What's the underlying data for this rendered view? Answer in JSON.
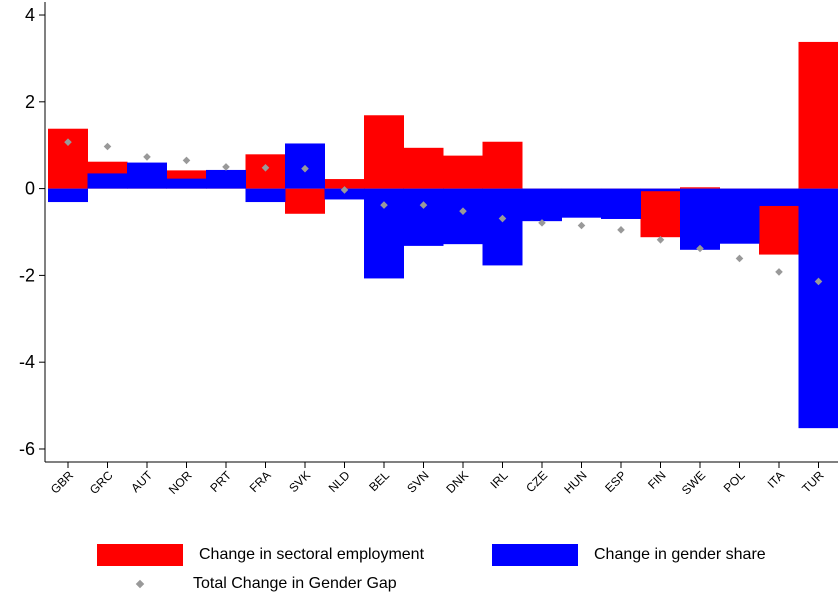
{
  "chart_data": {
    "type": "bar",
    "subtype": "stacked-diverging-with-marker",
    "categories": [
      "GBR",
      "GRC",
      "AUT",
      "NOR",
      "PRT",
      "FRA",
      "SVK",
      "NLD",
      "BEL",
      "SVN",
      "DNK",
      "IRL",
      "CZE",
      "HUN",
      "ESP",
      "FIN",
      "SWE",
      "POL",
      "ITA",
      "TUR"
    ],
    "series": [
      {
        "name": "Change in sectoral employment",
        "color": "#ff0000",
        "values": [
          1.38,
          0.62,
          0.13,
          0.42,
          0.07,
          0.79,
          -0.58,
          0.22,
          1.69,
          0.94,
          0.76,
          1.08,
          -0.04,
          -0.18,
          -0.25,
          -1.12,
          0.03,
          -0.34,
          -1.52,
          3.38
        ]
      },
      {
        "name": "Change in gender share",
        "color": "#0000ff",
        "values": [
          -0.31,
          0.35,
          0.6,
          0.23,
          0.43,
          -0.31,
          1.04,
          -0.25,
          -2.07,
          -1.32,
          -1.28,
          -1.77,
          -0.75,
          -0.67,
          -0.7,
          -0.06,
          -1.41,
          -1.27,
          -0.4,
          -5.52
        ]
      }
    ],
    "marker_series": {
      "name": "Total Change in Gender Gap",
      "color": "#999999",
      "values": [
        1.07,
        0.97,
        0.73,
        0.65,
        0.5,
        0.48,
        0.46,
        -0.03,
        -0.38,
        -0.38,
        -0.52,
        -0.69,
        -0.79,
        -0.85,
        -0.95,
        -1.18,
        -1.38,
        -1.61,
        -1.92,
        -2.14
      ]
    },
    "ylim": [
      -6.3,
      4.3
    ],
    "yticks": [
      -6,
      -4,
      -2,
      0,
      2,
      4
    ],
    "ytick_labels": [
      "-6",
      "-4",
      "-2",
      "0",
      "2",
      "4"
    ],
    "grid": false,
    "legend_position": "bottom"
  },
  "legend": {
    "sectoral": "Change in sectoral employment",
    "gender_share": "Change in gender share",
    "total": "Total Change in Gender Gap"
  }
}
